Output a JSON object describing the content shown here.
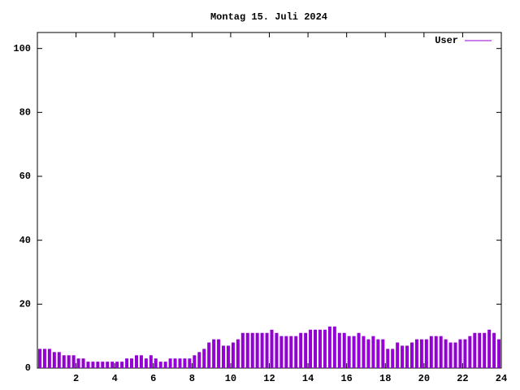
{
  "chart_data": {
    "type": "impulse",
    "title": "Montag 15. Juli 2024",
    "x": [
      0,
      0.25,
      0.5,
      0.75,
      1,
      1.25,
      1.5,
      1.75,
      2,
      2.25,
      2.5,
      2.75,
      3,
      3.25,
      3.5,
      3.75,
      4,
      4.25,
      4.5,
      4.75,
      5,
      5.25,
      5.5,
      5.75,
      6,
      6.25,
      6.5,
      6.75,
      7,
      7.25,
      7.5,
      7.75,
      8,
      8.25,
      8.5,
      8.75,
      9,
      9.25,
      9.5,
      9.75,
      10,
      10.25,
      10.5,
      10.75,
      11,
      11.25,
      11.5,
      11.75,
      12,
      12.25,
      12.5,
      12.75,
      13,
      13.25,
      13.5,
      13.75,
      14,
      14.25,
      14.5,
      14.75,
      15,
      15.25,
      15.5,
      15.75,
      16,
      16.25,
      16.5,
      16.75,
      17,
      17.25,
      17.5,
      17.75,
      18,
      18.25,
      18.5,
      18.75,
      19,
      19.25,
      19.5,
      19.75,
      20,
      20.25,
      20.5,
      20.75,
      21,
      21.25,
      21.5,
      21.75,
      22,
      22.25,
      22.5,
      22.75,
      23,
      23.25,
      23.5,
      23.75
    ],
    "series": [
      {
        "name": "User",
        "color": "#9400d3",
        "values": [
          6,
          6,
          6,
          5,
          5,
          4,
          4,
          4,
          3,
          3,
          2,
          2,
          2,
          2,
          2,
          2,
          2,
          2,
          3,
          3,
          4,
          4,
          3,
          4,
          3,
          2,
          2,
          3,
          3,
          3,
          3,
          3,
          4,
          5,
          6,
          8,
          9,
          9,
          7,
          7,
          8,
          9,
          11,
          11,
          11,
          11,
          11,
          11,
          12,
          11,
          10,
          10,
          10,
          10,
          11,
          11,
          12,
          12,
          12,
          12,
          13,
          13,
          11,
          11,
          10,
          10,
          11,
          10,
          9,
          10,
          9,
          9,
          6,
          6,
          8,
          7,
          7,
          8,
          9,
          9,
          9,
          10,
          10,
          10,
          9,
          8,
          8,
          9,
          9,
          10,
          11,
          11,
          11,
          12,
          11,
          9
        ]
      }
    ],
    "xlim": [
      0,
      24
    ],
    "xticks": [
      2,
      4,
      6,
      8,
      10,
      12,
      14,
      16,
      18,
      20,
      22,
      24
    ],
    "ylim": [
      0,
      105
    ],
    "yticks": [
      0,
      20,
      40,
      60,
      80,
      100
    ],
    "legend": "top-right"
  }
}
